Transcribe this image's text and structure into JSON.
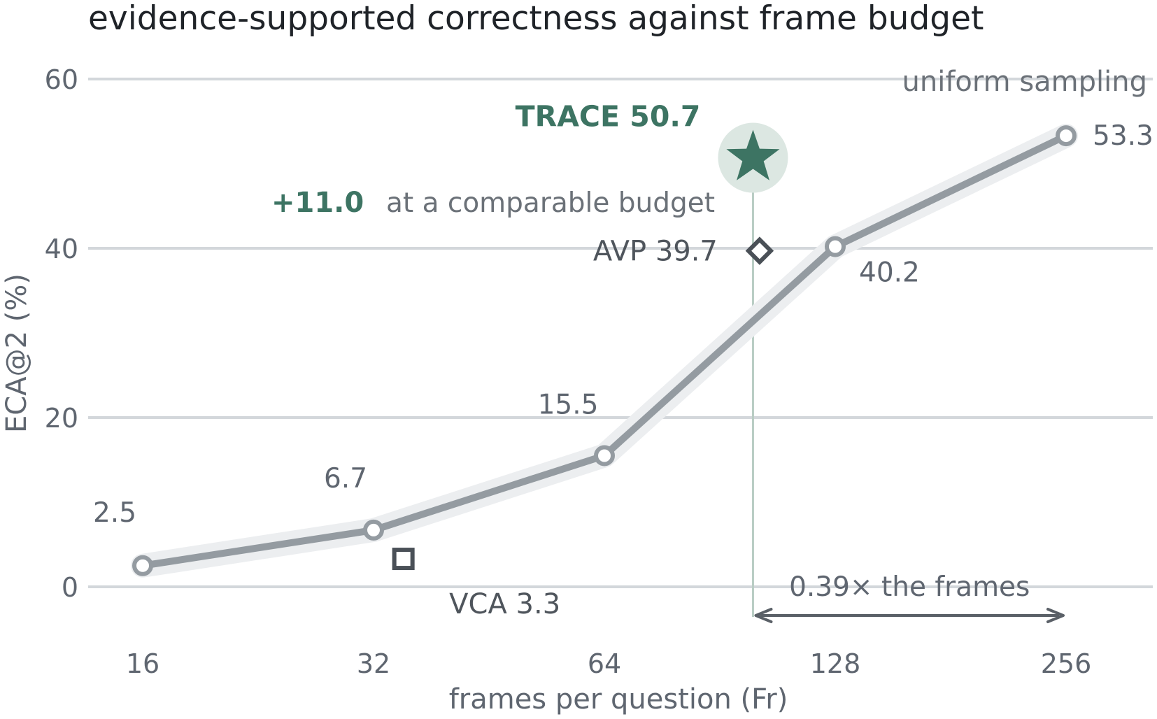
{
  "chart_data": {
    "type": "line",
    "title": "evidence-supported correctness against frame budget",
    "xlabel": "frames per question (Fr)",
    "ylabel": "ECA@2 (%)",
    "x_scale": "log2",
    "x_ticks": [
      "16",
      "32",
      "64",
      "128",
      "256"
    ],
    "xlim": [
      16,
      256
    ],
    "ylim": [
      -4,
      62
    ],
    "y_ticks": [
      "0",
      "20",
      "40",
      "60"
    ],
    "grid": "horizontal",
    "series": [
      {
        "name": "uniform sampling",
        "color": "#949ba1",
        "x": [
          16,
          32,
          64,
          128,
          256
        ],
        "y": [
          2.5,
          6.7,
          15.5,
          40.2,
          53.3
        ],
        "labels": [
          "2.5",
          "6.7",
          "15.5",
          "40.2",
          "53.3"
        ]
      }
    ],
    "points": [
      {
        "name": "TRACE",
        "x": 100,
        "y": 50.7,
        "marker": "star",
        "color": "#3d7463",
        "label": "TRACE 50.7"
      },
      {
        "name": "AVP",
        "x": 102,
        "y": 39.7,
        "marker": "diamond",
        "color": "#4a5057",
        "label": "AVP 39.7"
      },
      {
        "name": "VCA",
        "x": 35,
        "y": 3.3,
        "marker": "square",
        "color": "#4a5057",
        "label": "VCA 3.3"
      }
    ],
    "annotations": {
      "gain_value": "+11.0",
      "gain_text": "at a comparable budget",
      "frames_ratio": "0.39× the frames",
      "ratio_from_x": 100,
      "ratio_to_x": 256
    },
    "colors": {
      "grid": "#d3d7db",
      "band": "#eceef0",
      "line": "#949ba1",
      "accent": "#3d7463",
      "accent_halo": "#dce7e2",
      "marker": "#4a5057",
      "text": "#5f6670"
    }
  }
}
